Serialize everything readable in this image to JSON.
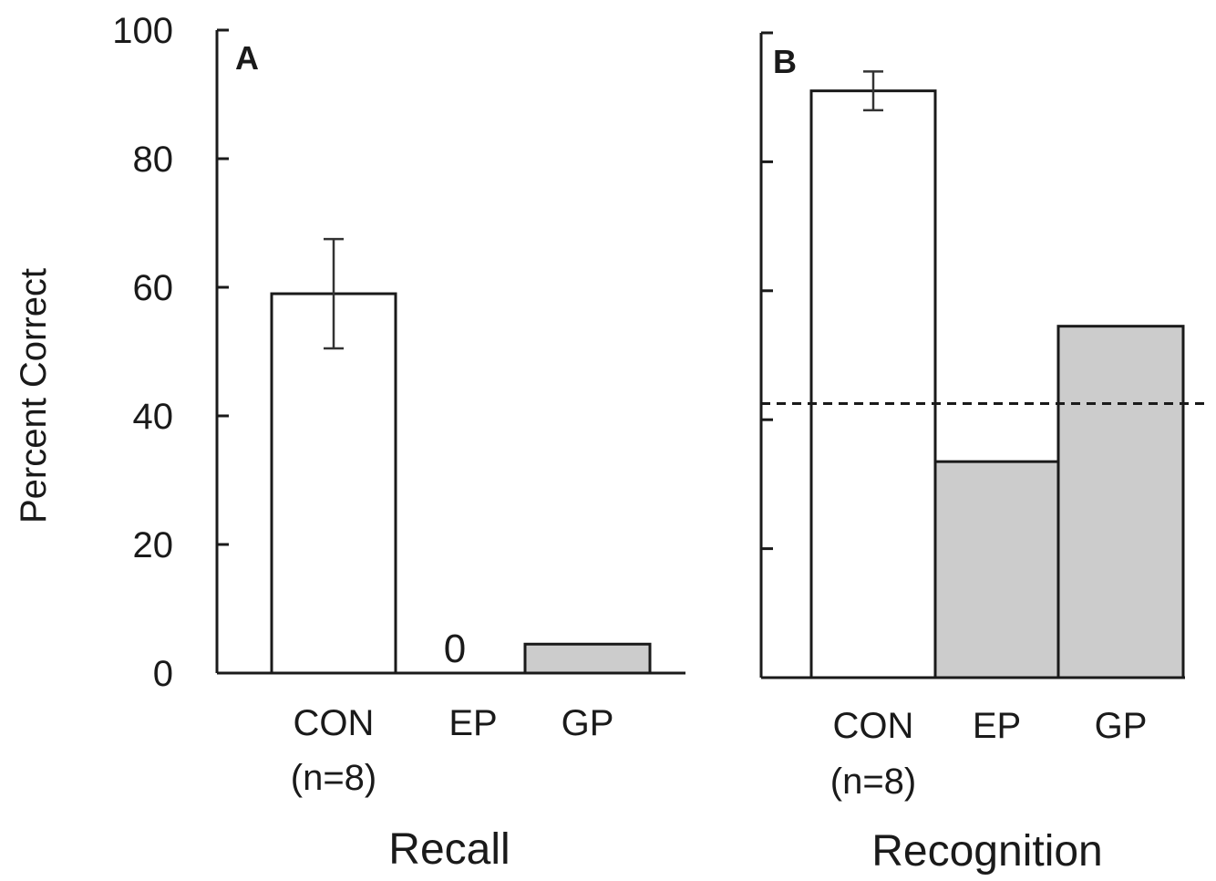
{
  "chart_data": [
    {
      "type": "bar",
      "panel": "A",
      "xlabel": "Recall",
      "ylabel": "Percent Correct",
      "ylim": [
        0,
        100
      ],
      "yticks": [
        "0",
        "20",
        "40",
        "60",
        "80",
        "100"
      ],
      "categories": [
        "CON",
        "EP",
        "GP"
      ],
      "category_sublabels": [
        "(n=8)",
        "",
        ""
      ],
      "values": [
        59,
        0,
        4.5
      ],
      "error": [
        8.5,
        null,
        null
      ],
      "data_labels": [
        "",
        "0",
        ""
      ],
      "colors": [
        "#ffffff",
        "#cccccc",
        "#cccccc"
      ]
    },
    {
      "type": "bar",
      "panel": "B",
      "xlabel": "Recognition",
      "ylim": [
        0,
        100
      ],
      "categories": [
        "CON",
        "EP",
        "GP"
      ],
      "category_sublabels": [
        "(n=8)",
        "",
        ""
      ],
      "values": [
        91,
        33.5,
        54.5
      ],
      "error": [
        3,
        null,
        null
      ],
      "reference_line": 42.5,
      "colors": [
        "#ffffff",
        "#cccccc",
        "#cccccc"
      ]
    }
  ]
}
